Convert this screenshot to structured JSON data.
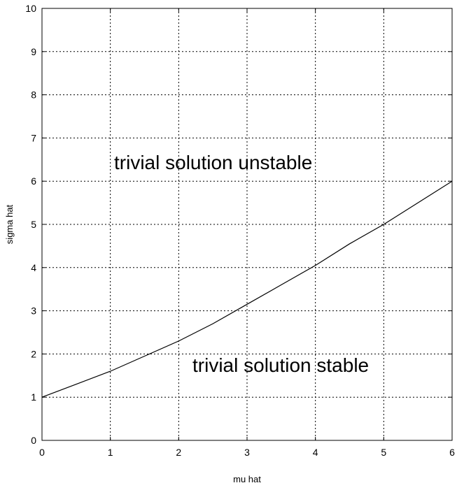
{
  "chart_data": {
    "type": "line",
    "x_label": "mu hat",
    "y_label": "sigma hat",
    "x": [
      0,
      0.5,
      1,
      1.5,
      2,
      2.5,
      3,
      3.5,
      4,
      4.5,
      5,
      5.5,
      6
    ],
    "series": [
      {
        "color": "#000000",
        "values": [
          1,
          1.3,
          1.6,
          1.95,
          2.3,
          2.7,
          3.15,
          3.6,
          4.05,
          4.55,
          5.0,
          5.5,
          6.0
        ]
      }
    ],
    "xlim": [
      0,
      6
    ],
    "ylim": [
      0,
      10
    ],
    "xticks": [
      0,
      1,
      2,
      3,
      4,
      5,
      6
    ],
    "yticks": [
      0,
      1,
      2,
      3,
      4,
      5,
      6,
      7,
      8,
      9,
      10
    ],
    "grid": true,
    "annotations": [
      "trivial solution unstable",
      "trivial solution stable"
    ]
  }
}
